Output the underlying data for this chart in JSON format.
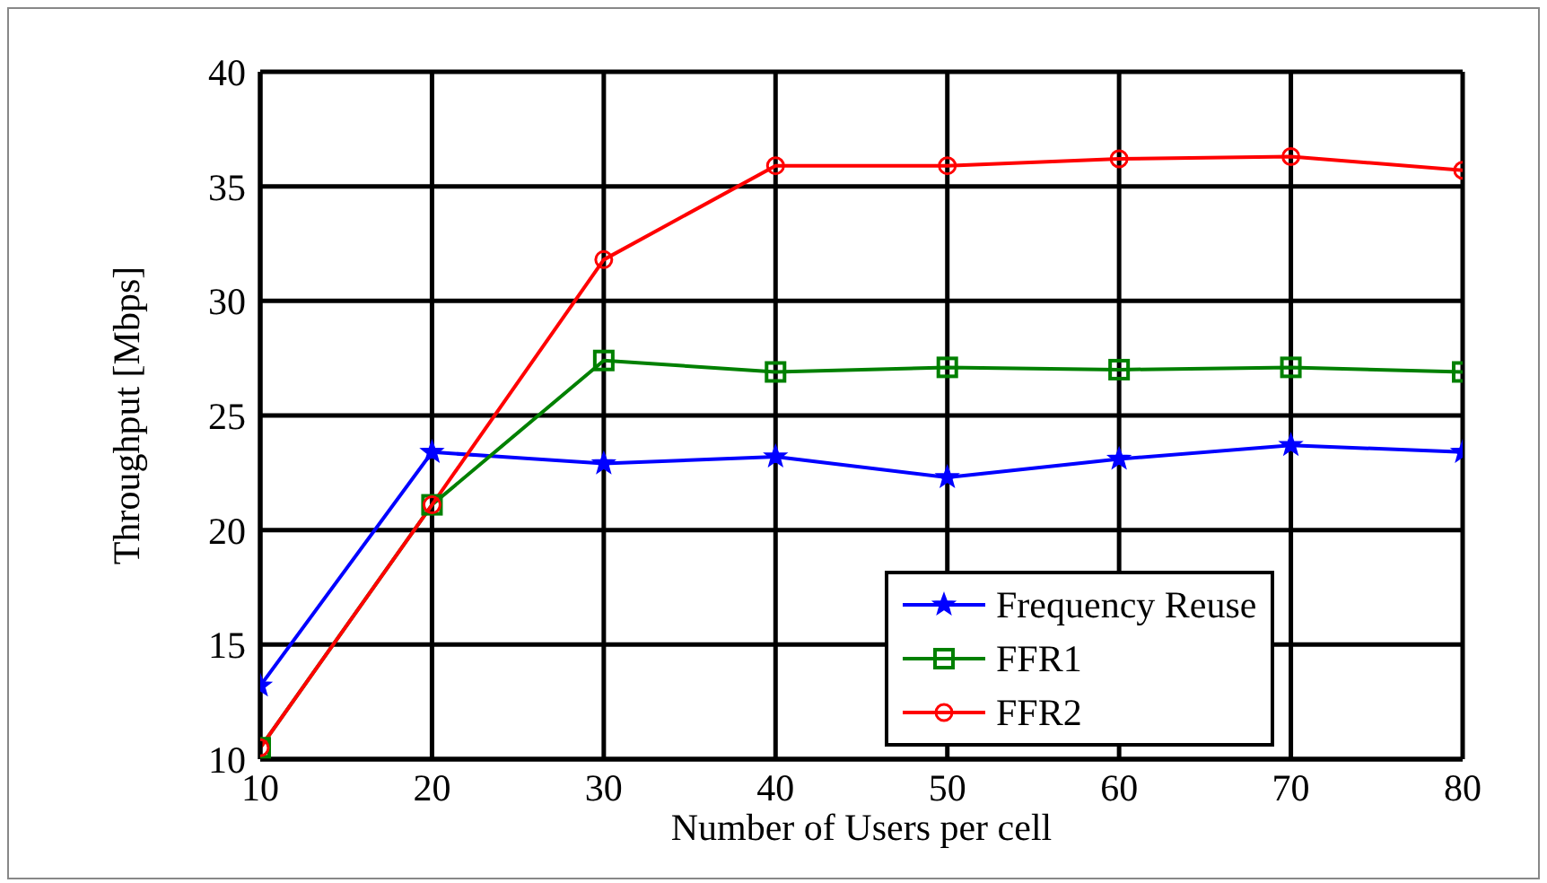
{
  "chart_data": {
    "type": "line",
    "xlabel": "Number of Users per cell",
    "ylabel": "Throughput [Mbps]",
    "x": [
      10,
      20,
      30,
      40,
      50,
      60,
      70,
      80
    ],
    "series": [
      {
        "name": "Frequency Reuse",
        "color": "#0000ff",
        "marker": "star",
        "values": [
          13.2,
          23.4,
          22.9,
          23.2,
          22.3,
          23.1,
          23.7,
          23.4
        ]
      },
      {
        "name": "FFR1",
        "color": "#008000",
        "marker": "square",
        "values": [
          10.5,
          21.1,
          27.4,
          26.9,
          27.1,
          27.0,
          27.1,
          26.9
        ]
      },
      {
        "name": "FFR2",
        "color": "#ff0000",
        "marker": "circle",
        "values": [
          10.5,
          21.1,
          31.8,
          35.9,
          35.9,
          36.2,
          36.3,
          35.7
        ]
      }
    ],
    "xlim": [
      10,
      80
    ],
    "xticks": [
      10,
      20,
      30,
      40,
      50,
      60,
      70,
      80
    ],
    "ylim": [
      10,
      40
    ],
    "yticks": [
      10,
      15,
      20,
      25,
      30,
      35,
      40
    ],
    "grid": true,
    "legend": "bottom right",
    "line_style": "solid"
  }
}
